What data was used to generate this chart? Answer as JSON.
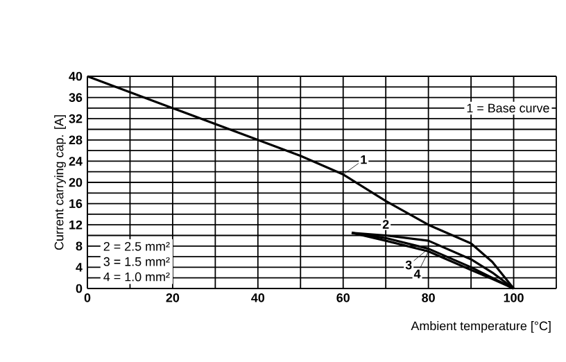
{
  "chart_data": {
    "type": "line",
    "xlabel": "Ambient temperature [°C]",
    "ylabel": "Current carrying cap. [A]",
    "xlim": [
      0,
      110
    ],
    "ylim": [
      0,
      40
    ],
    "xticks": [
      0,
      {
        "value": 10,
        "label": null
      },
      20,
      {
        "value": 30,
        "label": null
      },
      40,
      {
        "value": 50,
        "label": null
      },
      60,
      {
        "value": 70,
        "label": null
      },
      80,
      {
        "value": 90,
        "label": null
      },
      100,
      {
        "value": 110,
        "label": null
      }
    ],
    "yticks": [
      0,
      {
        "value": 2,
        "label": null
      },
      4,
      {
        "value": 6,
        "label": null
      },
      8,
      {
        "value": 10,
        "label": null
      },
      12,
      {
        "value": 14,
        "label": null
      },
      16,
      {
        "value": 18,
        "label": null
      },
      20,
      {
        "value": 22,
        "label": null
      },
      24,
      {
        "value": 26,
        "label": null
      },
      28,
      {
        "value": 30,
        "label": null
      },
      32,
      {
        "value": 34,
        "label": null
      },
      36,
      {
        "value": 38,
        "label": null
      },
      40
    ],
    "grid": true,
    "legend": "bottom right",
    "marker": "none",
    "line_style": "solid",
    "series": [
      {
        "name": "1",
        "color": "#000000",
        "x": [
          0,
          10,
          20,
          30,
          40,
          50,
          60,
          70,
          80,
          90,
          95,
          100
        ],
        "values": [
          40,
          37,
          34,
          31,
          28,
          25,
          21.5,
          16.5,
          12,
          8.5,
          5,
          0
        ]
      },
      {
        "name": "2",
        "color": "#000000",
        "x": [
          62,
          70,
          80,
          90,
          95,
          100
        ],
        "values": [
          10.5,
          10,
          9,
          5.5,
          3,
          0
        ]
      },
      {
        "name": "3",
        "color": "#000000",
        "x": [
          62,
          70,
          80,
          90,
          95,
          100
        ],
        "values": [
          10.5,
          9.5,
          7.5,
          4,
          2,
          0
        ]
      },
      {
        "name": "4",
        "color": "#000000",
        "x": [
          62,
          70,
          80,
          90,
          95,
          100
        ],
        "values": [
          10.5,
          9,
          7,
          3.5,
          1.8,
          0
        ]
      }
    ],
    "annotations": [
      "1 = Base curve",
      "2 = 2.5 mm²",
      "3 = 1.5 mm²",
      "4 = 1.0 mm²"
    ]
  }
}
